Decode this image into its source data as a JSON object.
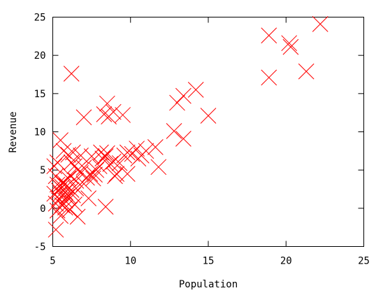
{
  "chart_data": {
    "type": "scatter",
    "title": "",
    "xlabel": "Population",
    "ylabel": "Revenue",
    "xlim": [
      5,
      25
    ],
    "ylim": [
      -5,
      25
    ],
    "xticks": [
      "5",
      "10",
      "15",
      "20",
      "25"
    ],
    "yticks": [
      "-5",
      "0",
      "5",
      "10",
      "15",
      "20",
      "25"
    ],
    "grid": false,
    "marker": "x",
    "marker_color": "#ff0000",
    "points": [
      [
        5.1,
        5.5
      ],
      [
        5.2,
        4.2
      ],
      [
        5.3,
        3.1
      ],
      [
        5.4,
        2.3
      ],
      [
        5.5,
        1.9
      ],
      [
        5.6,
        2.8
      ],
      [
        5.7,
        3.4
      ],
      [
        5.8,
        2.1
      ],
      [
        5.9,
        1.5
      ],
      [
        6.0,
        3.9
      ],
      [
        5.2,
        0.6
      ],
      [
        5.4,
        1.2
      ],
      [
        5.6,
        0.4
      ],
      [
        5.8,
        1.0
      ],
      [
        6.0,
        1.6
      ],
      [
        6.2,
        2.4
      ],
      [
        5.3,
        -0.3
      ],
      [
        5.5,
        -1.0
      ],
      [
        5.2,
        -2.8
      ],
      [
        5.1,
        1.9
      ],
      [
        5.5,
        8.9
      ],
      [
        5.7,
        7.5
      ],
      [
        6.0,
        7.0
      ],
      [
        6.2,
        6.0
      ],
      [
        6.4,
        5.5
      ],
      [
        6.6,
        5.0
      ],
      [
        6.8,
        4.6
      ],
      [
        7.0,
        5.3
      ],
      [
        7.2,
        4.0
      ],
      [
        7.4,
        4.5
      ],
      [
        7.6,
        3.9
      ],
      [
        7.8,
        5.0
      ],
      [
        8.0,
        5.5
      ],
      [
        8.2,
        6.5
      ],
      [
        8.4,
        6.8
      ],
      [
        8.5,
        7.2
      ],
      [
        8.7,
        5.8
      ],
      [
        8.9,
        6.1
      ],
      [
        9.1,
        4.5
      ],
      [
        9.3,
        5.9
      ],
      [
        9.6,
        6.9
      ],
      [
        9.8,
        7.3
      ],
      [
        10.1,
        7.1
      ],
      [
        10.4,
        7.8
      ],
      [
        10.7,
        6.9
      ],
      [
        11.0,
        7.5
      ],
      [
        11.6,
        8.0
      ],
      [
        11.8,
        5.4
      ],
      [
        6.3,
        7.3
      ],
      [
        6.8,
        6.9
      ],
      [
        7.5,
        6.8
      ],
      [
        8.1,
        7.3
      ],
      [
        7.0,
        3.2
      ],
      [
        6.5,
        3.6
      ],
      [
        6.1,
        4.3
      ],
      [
        6.2,
        17.6
      ],
      [
        7.0,
        11.9
      ],
      [
        8.3,
        12.3
      ],
      [
        8.5,
        13.7
      ],
      [
        8.6,
        12.0
      ],
      [
        8.9,
        12.6
      ],
      [
        9.5,
        12.2
      ],
      [
        12.8,
        10.1
      ],
      [
        13.0,
        13.8
      ],
      [
        13.4,
        14.7
      ],
      [
        13.4,
        9.1
      ],
      [
        14.2,
        15.5
      ],
      [
        15.0,
        12.1
      ],
      [
        18.9,
        22.6
      ],
      [
        18.9,
        17.1
      ],
      [
        20.2,
        21.6
      ],
      [
        20.3,
        21.1
      ],
      [
        21.3,
        17.9
      ],
      [
        22.2,
        24.1
      ],
      [
        8.4,
        0.2
      ],
      [
        7.3,
        1.3
      ],
      [
        6.4,
        0.5
      ],
      [
        6.6,
        -1.1
      ],
      [
        6.1,
        -0.2
      ],
      [
        7.7,
        4.4
      ],
      [
        9.0,
        4.2
      ],
      [
        5.9,
        2.9
      ],
      [
        6.3,
        1.7
      ],
      [
        5.4,
        2.9
      ],
      [
        5.6,
        3.3
      ],
      [
        5.8,
        0.1
      ],
      [
        6.5,
        2.6
      ],
      [
        5.3,
        6.0
      ],
      [
        9.8,
        4.5
      ],
      [
        10.5,
        6.5
      ]
    ]
  }
}
